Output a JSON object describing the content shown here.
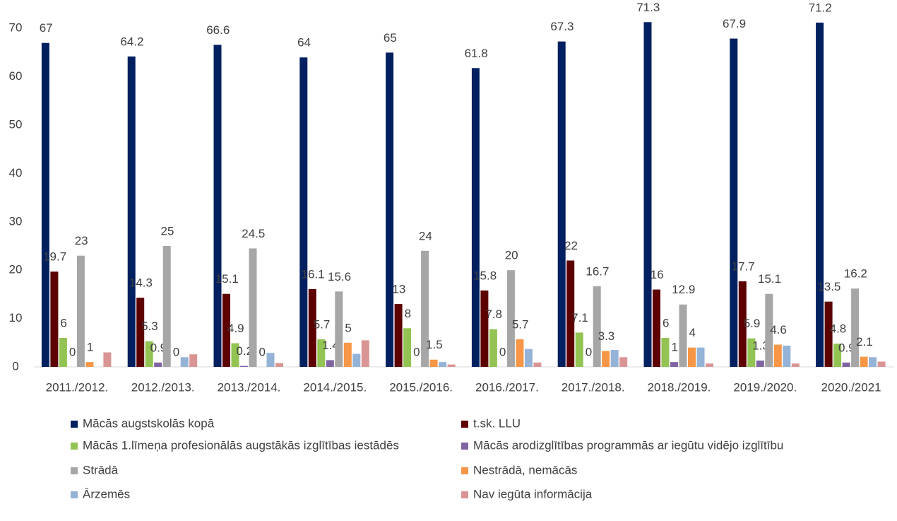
{
  "chart_data": {
    "type": "bar",
    "categories": [
      "2011./2012.",
      "2012./2013.",
      "2013./2014.",
      "2014./2015.",
      "2015./2016.",
      "2016./2017.",
      "2017./2018.",
      "2018./2019.",
      "2019./2020.",
      "2020./2021"
    ],
    "series": [
      {
        "name": "Mācās augstskolās  kopā",
        "color": "#002060",
        "values": [
          67,
          64.2,
          66.6,
          64,
          65,
          61.8,
          67.3,
          71.3,
          67.9,
          71.2
        ]
      },
      {
        "name": "t.sk. LLU",
        "color": "#5c0000",
        "values": [
          19.7,
          14.3,
          15.1,
          16.1,
          13,
          15.8,
          22,
          16,
          17.7,
          13.5
        ]
      },
      {
        "name": "Mācās 1.līmeņa profesionālās augstākās izglītības iestādēs",
        "color": "#92c353",
        "values": [
          6,
          5.3,
          4.9,
          5.7,
          8,
          7.8,
          7.1,
          6,
          5.9,
          4.8
        ]
      },
      {
        "name": "Mācās arodizglītības programmās ar iegūtu vidējo izglītību",
        "color": "#8064a2",
        "values": [
          0,
          0.9,
          0.2,
          1.4,
          0,
          0,
          0,
          1,
          1.3,
          0.9
        ]
      },
      {
        "name": "Strādā",
        "color": "#a6a6a6",
        "values": [
          23,
          25,
          24.5,
          15.6,
          24,
          20,
          16.7,
          12.9,
          15.1,
          16.2
        ]
      },
      {
        "name": "Nestrādā, nemācās",
        "color": "#f79646",
        "values": [
          1,
          0,
          0,
          5,
          1.5,
          5.7,
          3.3,
          4,
          4.6,
          2.1
        ]
      },
      {
        "name": "Ārzemēs",
        "color": "#95b3d7",
        "values": [
          0,
          2,
          2.9,
          2.7,
          1,
          3.7,
          3.5,
          4,
          4.4,
          2
        ]
      },
      {
        "name": "Nav iegūta informācija",
        "color": "#d99594",
        "values": [
          3,
          2.6,
          0.8,
          5.5,
          0.5,
          0.9,
          2,
          0.7,
          0.7,
          1.1
        ]
      }
    ],
    "ylim": [
      0,
      75
    ],
    "yticks": [
      0,
      10,
      20,
      30,
      40,
      50,
      60,
      70
    ],
    "grid": false
  }
}
